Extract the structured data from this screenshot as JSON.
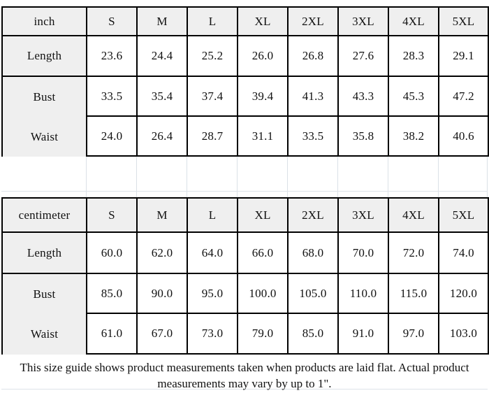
{
  "colors": {
    "header_fill": "#efefef",
    "label_fill": "#efefef",
    "cell_fill": "#ffffff",
    "table_border": "#000000",
    "faint_gridline": "#dbe1e7"
  },
  "tables": [
    {
      "unit": "inch",
      "header": [
        "inch",
        "S",
        "M",
        "L",
        "XL",
        "2XL",
        "3XL",
        "4XL",
        "5XL"
      ],
      "rows": [
        {
          "label": "Length",
          "values": [
            "23.6",
            "24.4",
            "25.2",
            "26.0",
            "26.8",
            "27.6",
            "28.3",
            "29.1"
          ]
        },
        {
          "label": "Bust",
          "values": [
            "33.5",
            "35.4",
            "37.4",
            "39.4",
            "41.3",
            "43.3",
            "45.3",
            "47.2"
          ]
        },
        {
          "label": "Waist",
          "values": [
            "24.0",
            "26.4",
            "28.7",
            "31.1",
            "33.5",
            "35.8",
            "38.2",
            "40.6"
          ]
        }
      ]
    },
    {
      "unit": "centimeter",
      "header": [
        "centimeter",
        "S",
        "M",
        "L",
        "XL",
        "2XL",
        "3XL",
        "4XL",
        "5XL"
      ],
      "rows": [
        {
          "label": "Length",
          "values": [
            "60.0",
            "62.0",
            "64.0",
            "66.0",
            "68.0",
            "70.0",
            "72.0",
            "74.0"
          ]
        },
        {
          "label": "Bust",
          "values": [
            "85.0",
            "90.0",
            "95.0",
            "100.0",
            "105.0",
            "110.0",
            "115.0",
            "120.0"
          ]
        },
        {
          "label": "Waist",
          "values": [
            "61.0",
            "67.0",
            "73.0",
            "79.0",
            "85.0",
            "91.0",
            "97.0",
            "103.0"
          ]
        }
      ]
    }
  ],
  "footer": {
    "line1": "This size guide shows product measurements taken when products are laid flat. Actual product",
    "line2": "measurements may vary by up to 1\"."
  }
}
